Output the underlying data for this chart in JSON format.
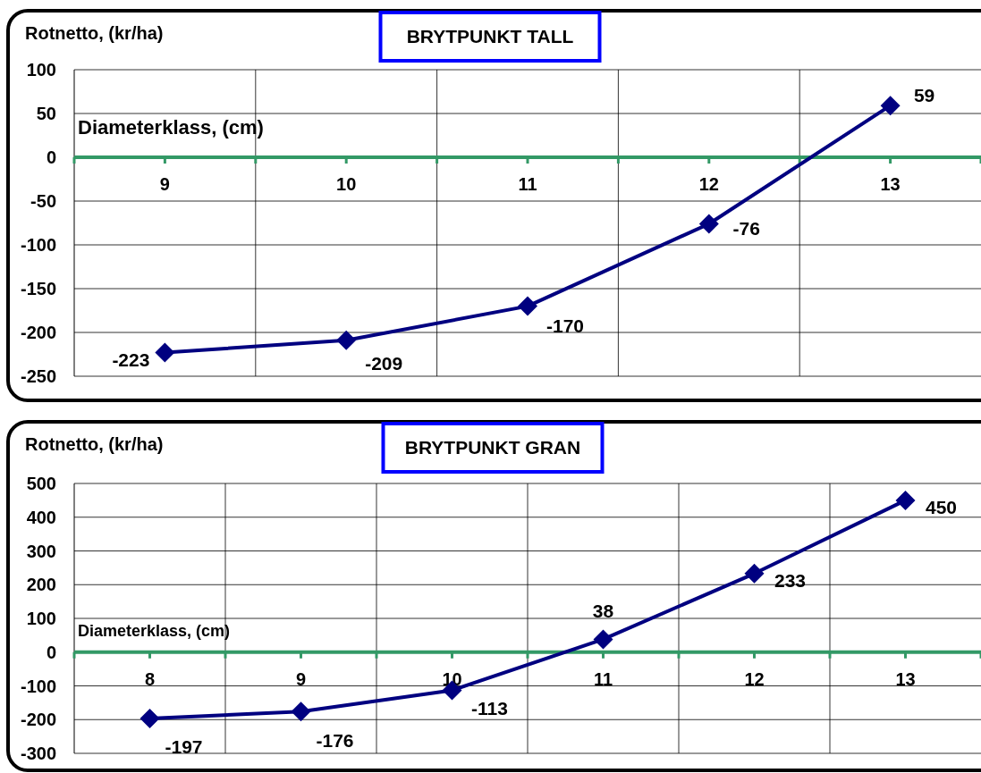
{
  "chart_data": [
    {
      "type": "line",
      "title": "BRYTPUNKT TALL",
      "ylabel": "Rotnetto, (kr/ha)",
      "xlabel": "Diameterklass, (cm)",
      "categories": [
        "9",
        "10",
        "11",
        "12",
        "13"
      ],
      "series": [
        {
          "color": "#000080",
          "values": [
            -223,
            -209,
            -170,
            -76,
            59
          ]
        }
      ],
      "ylim": [
        -250,
        100
      ],
      "yticks": [
        -250,
        -200,
        -150,
        -100,
        -50,
        0,
        50,
        100
      ],
      "grid": true,
      "marker": "diamond",
      "line_style": "solid",
      "data_labels": true
    },
    {
      "type": "line",
      "title": "BRYTPUNKT GRAN",
      "ylabel": "Rotnetto, (kr/ha)",
      "xlabel": "Diameterklass, (cm)",
      "categories": [
        "8",
        "9",
        "10",
        "11",
        "12",
        "13"
      ],
      "series": [
        {
          "color": "#000080",
          "values": [
            -197,
            -176,
            -113,
            38,
            233,
            450
          ]
        }
      ],
      "ylim": [
        -300,
        500
      ],
      "yticks": [
        -300,
        -200,
        -100,
        0,
        100,
        200,
        300,
        400,
        500
      ],
      "grid": true,
      "marker": "diamond",
      "line_style": "solid",
      "data_labels": true
    }
  ]
}
